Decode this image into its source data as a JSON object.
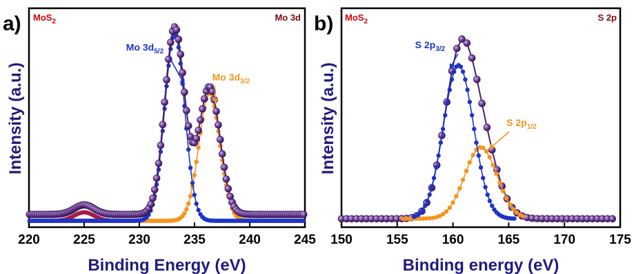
{
  "colors": {
    "envelope": "#4b1e6e",
    "envelope_light": "#9c7cc0",
    "blue": "#1c34c8",
    "orange": "#f7931e",
    "maroon": "#a41d4a",
    "axis_label": "#1f1c7e",
    "red_label": "#d40000",
    "dark_red": "#7a0a10"
  },
  "chart_data": [
    {
      "type": "line",
      "panel_letter": "a)",
      "corner_left": {
        "main": "MoS",
        "sub": "2"
      },
      "corner_right": "Mo 3d",
      "xlabel": "Binding Energy (eV)",
      "ylabel": "Intensity (a.u.)",
      "xlim": [
        220,
        245
      ],
      "ylim": [
        -0.03,
        1.0
      ],
      "xticks": [
        "220",
        "225",
        "230",
        "235",
        "240",
        "245"
      ],
      "baseline": 0.0,
      "series": [
        {
          "id": "env",
          "role": "envelope",
          "x_step": 0.18,
          "offset": 0.03,
          "peaks": [
            {
              "center": 233.2,
              "height": 0.88,
              "width": 0.9
            },
            {
              "center": 236.35,
              "height": 0.6,
              "width": 0.95
            },
            {
              "center": 225.0,
              "height": 0.045,
              "width": 0.9
            }
          ]
        },
        {
          "id": "mo52",
          "name": "Mo 3d5/2",
          "color": "blue",
          "x_step": 0.18,
          "offset": 0.0,
          "peaks": [
            {
              "center": 233.2,
              "height": 0.88,
              "width": 0.9
            }
          ]
        },
        {
          "id": "mo32",
          "name": "Mo 3d3/2",
          "color": "orange",
          "x_step": 0.18,
          "offset": 0.0,
          "peaks": [
            {
              "center": 236.35,
              "height": 0.6,
              "width": 0.95
            }
          ]
        },
        {
          "id": "s2s",
          "color": "maroon",
          "x_step": 0.18,
          "offset": 0.0,
          "xrange": [
            222,
            228
          ],
          "peaks": [
            {
              "center": 225.0,
              "height": 0.04,
              "width": 0.9
            }
          ]
        }
      ],
      "annotations": [
        {
          "main": "Mo 3d",
          "sub": "5/2",
          "color": "blue",
          "x": 228.8,
          "y": 0.8,
          "arrow_to": [
            234.1,
            0.64
          ]
        },
        {
          "main": "Mo 3d",
          "sub": "3/2",
          "color": "orange",
          "x": 236.6,
          "y": 0.66,
          "arrow_to": [
            236.9,
            0.55
          ]
        }
      ]
    },
    {
      "type": "line",
      "panel_letter": "b)",
      "corner_left": {
        "main": "MoS",
        "sub": "2"
      },
      "corner_right": "S 2p",
      "xlabel": "Binding energy (eV)",
      "ylabel": "Intensity (a.u.)",
      "xlim": [
        150,
        175
      ],
      "ylim": [
        -0.04,
        1.0
      ],
      "xticks": [
        "150",
        "155",
        "160",
        "165",
        "170",
        "175"
      ],
      "baseline": 0.0,
      "series": [
        {
          "id": "env",
          "role": "envelope",
          "x_step": 0.45,
          "offset": 0.0,
          "xrange": [
            150,
            174.6
          ],
          "peaks": [
            {
              "center": 160.5,
              "height": 0.7,
              "width": 1.35
            },
            {
              "center": 162.5,
              "height": 0.34,
              "width": 1.45
            }
          ]
        },
        {
          "id": "s32",
          "name": "S 2p3/2",
          "color": "blue",
          "x_step": 0.2,
          "offset": 0.0,
          "xrange": [
            156.5,
            165.5
          ],
          "peaks": [
            {
              "center": 160.5,
              "height": 0.73,
              "width": 1.35
            }
          ]
        },
        {
          "id": "s12",
          "name": "S 2p1/2",
          "color": "orange",
          "x_step": 0.3,
          "offset": 0.0,
          "xrange": [
            155.5,
            166.5
          ],
          "peaks": [
            {
              "center": 162.5,
              "height": 0.34,
              "width": 1.45
            }
          ]
        }
      ],
      "annotations": [
        {
          "main": "S 2p",
          "sub": "3/2",
          "color": "blue",
          "x": 156.6,
          "y": 0.81,
          "arrow_to": [
            159.7,
            0.71
          ]
        },
        {
          "main": "S 2p",
          "sub": "1/2",
          "color": "orange",
          "x": 164.8,
          "y": 0.44,
          "arrow_to": [
            163.2,
            0.33
          ]
        }
      ]
    }
  ]
}
